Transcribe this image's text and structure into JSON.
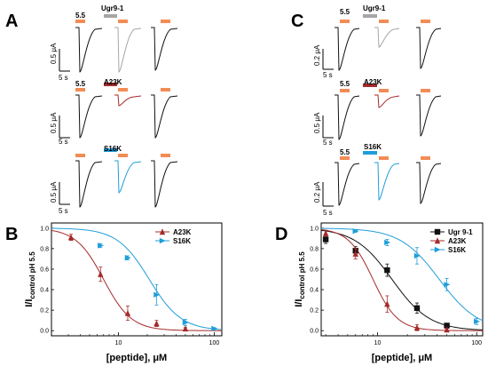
{
  "figure": {
    "panel_labels": [
      "A",
      "B",
      "C",
      "D"
    ],
    "traces_A": {
      "row_labels": [
        "5.5",
        "A23K",
        "S16K"
      ],
      "peptide_label_row1": "Ugr9-1",
      "scale_current": "0.5 μA",
      "scale_time": "5 s"
    },
    "traces_C": {
      "row_labels": [
        "5.5",
        "A23K",
        "S16K"
      ],
      "peptide_label_row1": "Ugr9-1",
      "row1_ph_label": "5.5",
      "scale_current_row1": "0.2 μA",
      "scale_current_row2": "0.5 μA",
      "scale_current_row3": "0.2 μA",
      "scale_time": "5 s"
    },
    "colors": {
      "ph_bar": "#f28c55",
      "ugr": "#a6a6a6",
      "a23k": "#a52a2a",
      "s16k": "#1f9ed8",
      "black": "#111111"
    }
  },
  "chart_data": [
    {
      "panel": "B",
      "type": "scatter",
      "xscale": "log",
      "xlabel": "[peptide], μM",
      "ylabel": "I/Icontrol pH 5.5",
      "ylabel_main": "I/I",
      "ylabel_sub": "control pH 5.5",
      "xlim": [
        2,
        120
      ],
      "ylim": [
        -0.05,
        1.05
      ],
      "xticks": [
        {
          "v": 10,
          "label": "10"
        },
        {
          "v": 100,
          "label": "100"
        }
      ],
      "yticks": [
        0.0,
        0.2,
        0.4,
        0.6,
        0.8,
        1.0
      ],
      "ytick_labels": [
        "0.0",
        "0.2",
        "0.4",
        "0.6",
        "0.8",
        "1.0"
      ],
      "legend_position": "top-right",
      "series": [
        {
          "name": "A23K",
          "color": "#a52a2a",
          "marker": "triangle-up",
          "points": [
            {
              "x": 3.2,
              "y": 0.91,
              "err": 0.03
            },
            {
              "x": 6.5,
              "y": 0.55,
              "err": 0.07
            },
            {
              "x": 12.5,
              "y": 0.17,
              "err": 0.07
            },
            {
              "x": 25,
              "y": 0.07,
              "err": 0.03
            },
            {
              "x": 50,
              "y": 0.02,
              "err": 0.01
            }
          ],
          "fit": {
            "ic50": 7.0,
            "hill": 3.0
          }
        },
        {
          "name": "S16K",
          "color": "#1f9ed8",
          "marker": "triangle-right",
          "points": [
            {
              "x": 6.5,
              "y": 0.83,
              "err": 0.02
            },
            {
              "x": 12.5,
              "y": 0.71,
              "err": 0.02
            },
            {
              "x": 25,
              "y": 0.35,
              "err": 0.1
            },
            {
              "x": 50,
              "y": 0.08,
              "err": 0.03
            },
            {
              "x": 100,
              "y": 0.02,
              "err": 0.01
            }
          ],
          "fit": {
            "ic50": 21.0,
            "hill": 2.6
          }
        }
      ]
    },
    {
      "panel": "D",
      "type": "scatter",
      "xscale": "log",
      "xlabel": "[peptide], μM",
      "ylabel": "I/Icontrol pH 5.5",
      "ylabel_main": "I/I",
      "ylabel_sub": "control pH 5.5",
      "xlim": [
        2.7,
        115
      ],
      "ylim": [
        -0.05,
        1.05
      ],
      "xticks": [
        {
          "v": 10,
          "label": "10"
        },
        {
          "v": 100,
          "label": "100"
        }
      ],
      "yticks": [
        0.0,
        0.2,
        0.4,
        0.6,
        0.8,
        1.0
      ],
      "ytick_labels": [
        "0.0",
        "0.2",
        "0.4",
        "0.6",
        "0.8",
        "1.0"
      ],
      "legend_position": "top-right",
      "series": [
        {
          "name": "Ugr 9-1",
          "color": "#111111",
          "marker": "square",
          "points": [
            {
              "x": 3,
              "y": 0.89,
              "err": 0.04
            },
            {
              "x": 6,
              "y": 0.78,
              "err": 0.04
            },
            {
              "x": 12.5,
              "y": 0.59,
              "err": 0.06
            },
            {
              "x": 25,
              "y": 0.22,
              "err": 0.05
            },
            {
              "x": 50,
              "y": 0.05,
              "err": 0.02
            }
          ],
          "fit": {
            "ic50": 14.0,
            "hill": 2.3
          }
        },
        {
          "name": "A23K",
          "color": "#a52a2a",
          "marker": "triangle-up",
          "points": [
            {
              "x": 3,
              "y": 0.95,
              "err": 0.03
            },
            {
              "x": 6,
              "y": 0.75,
              "err": 0.05
            },
            {
              "x": 12.5,
              "y": 0.26,
              "err": 0.08
            },
            {
              "x": 25,
              "y": 0.03,
              "err": 0.03
            },
            {
              "x": 50,
              "y": 0.01,
              "err": 0.01
            }
          ],
          "fit": {
            "ic50": 9.0,
            "hill": 3.5
          }
        },
        {
          "name": "S16K",
          "color": "#1f9ed8",
          "marker": "triangle-right",
          "points": [
            {
              "x": 6,
              "y": 0.97,
              "err": 0.01
            },
            {
              "x": 12.5,
              "y": 0.86,
              "err": 0.03
            },
            {
              "x": 25,
              "y": 0.73,
              "err": 0.08
            },
            {
              "x": 50,
              "y": 0.45,
              "err": 0.06
            },
            {
              "x": 100,
              "y": 0.09,
              "err": 0.03
            }
          ],
          "fit": {
            "ic50": 42.0,
            "hill": 2.2
          }
        }
      ]
    }
  ]
}
